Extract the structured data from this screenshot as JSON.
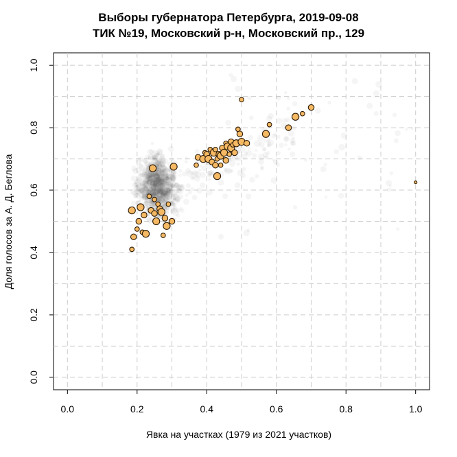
{
  "chart_data": {
    "type": "scatter",
    "title": "Выборы губернатора Петербурга, 2019-09-08",
    "subtitle": "ТИК №19, Московский р-н, Московский пр., 129",
    "xlabel": "Явка на участках (1979 из 2021 участков)",
    "ylabel": "Доля голосов за А. Д. Беглова",
    "xlim": [
      -0.04,
      1.04
    ],
    "ylim": [
      -0.04,
      1.04
    ],
    "x_ticks": [
      "0.0",
      "0.2",
      "0.4",
      "0.6",
      "0.8",
      "1.0"
    ],
    "y_ticks": [
      "0.0",
      "0.2",
      "0.4",
      "0.6",
      "0.8",
      "1.0"
    ],
    "grid": true,
    "background_cloud_center": {
      "x": 0.26,
      "y": 0.61
    },
    "colors": {
      "highlight_fill": "#f5b964",
      "highlight_stroke": "#2b1a05",
      "background_points": "#555555",
      "grid": "#cccccc"
    },
    "series": [
      {
        "values": [
          {
            "x": 0.185,
            "y": 0.41
          },
          {
            "x": 0.19,
            "y": 0.45
          },
          {
            "x": 0.185,
            "y": 0.535
          },
          {
            "x": 0.2,
            "y": 0.475
          },
          {
            "x": 0.205,
            "y": 0.5
          },
          {
            "x": 0.21,
            "y": 0.545
          },
          {
            "x": 0.215,
            "y": 0.465
          },
          {
            "x": 0.22,
            "y": 0.52
          },
          {
            "x": 0.225,
            "y": 0.46
          },
          {
            "x": 0.235,
            "y": 0.58
          },
          {
            "x": 0.24,
            "y": 0.535
          },
          {
            "x": 0.245,
            "y": 0.67
          },
          {
            "x": 0.25,
            "y": 0.57
          },
          {
            "x": 0.25,
            "y": 0.525
          },
          {
            "x": 0.255,
            "y": 0.5
          },
          {
            "x": 0.26,
            "y": 0.555
          },
          {
            "x": 0.265,
            "y": 0.54
          },
          {
            "x": 0.27,
            "y": 0.53
          },
          {
            "x": 0.275,
            "y": 0.455
          },
          {
            "x": 0.28,
            "y": 0.51
          },
          {
            "x": 0.285,
            "y": 0.485
          },
          {
            "x": 0.29,
            "y": 0.555
          },
          {
            "x": 0.3,
            "y": 0.5
          },
          {
            "x": 0.305,
            "y": 0.675
          },
          {
            "x": 0.37,
            "y": 0.68
          },
          {
            "x": 0.375,
            "y": 0.705
          },
          {
            "x": 0.39,
            "y": 0.7
          },
          {
            "x": 0.395,
            "y": 0.72
          },
          {
            "x": 0.4,
            "y": 0.715
          },
          {
            "x": 0.405,
            "y": 0.7
          },
          {
            "x": 0.41,
            "y": 0.73
          },
          {
            "x": 0.415,
            "y": 0.69
          },
          {
            "x": 0.42,
            "y": 0.72
          },
          {
            "x": 0.425,
            "y": 0.73
          },
          {
            "x": 0.425,
            "y": 0.68
          },
          {
            "x": 0.43,
            "y": 0.645
          },
          {
            "x": 0.43,
            "y": 0.7
          },
          {
            "x": 0.435,
            "y": 0.715
          },
          {
            "x": 0.44,
            "y": 0.71
          },
          {
            "x": 0.44,
            "y": 0.68
          },
          {
            "x": 0.445,
            "y": 0.735
          },
          {
            "x": 0.45,
            "y": 0.72
          },
          {
            "x": 0.455,
            "y": 0.75
          },
          {
            "x": 0.455,
            "y": 0.695
          },
          {
            "x": 0.46,
            "y": 0.74
          },
          {
            "x": 0.465,
            "y": 0.715
          },
          {
            "x": 0.47,
            "y": 0.755
          },
          {
            "x": 0.47,
            "y": 0.735
          },
          {
            "x": 0.475,
            "y": 0.745
          },
          {
            "x": 0.48,
            "y": 0.72
          },
          {
            "x": 0.485,
            "y": 0.75
          },
          {
            "x": 0.49,
            "y": 0.795
          },
          {
            "x": 0.495,
            "y": 0.78
          },
          {
            "x": 0.5,
            "y": 0.755
          },
          {
            "x": 0.5,
            "y": 0.89
          },
          {
            "x": 0.515,
            "y": 0.75
          },
          {
            "x": 0.57,
            "y": 0.78
          },
          {
            "x": 0.58,
            "y": 0.81
          },
          {
            "x": 0.635,
            "y": 0.8
          },
          {
            "x": 0.655,
            "y": 0.835
          },
          {
            "x": 0.675,
            "y": 0.845
          },
          {
            "x": 0.7,
            "y": 0.865
          },
          {
            "x": 1.0,
            "y": 0.625
          }
        ]
      }
    ]
  }
}
